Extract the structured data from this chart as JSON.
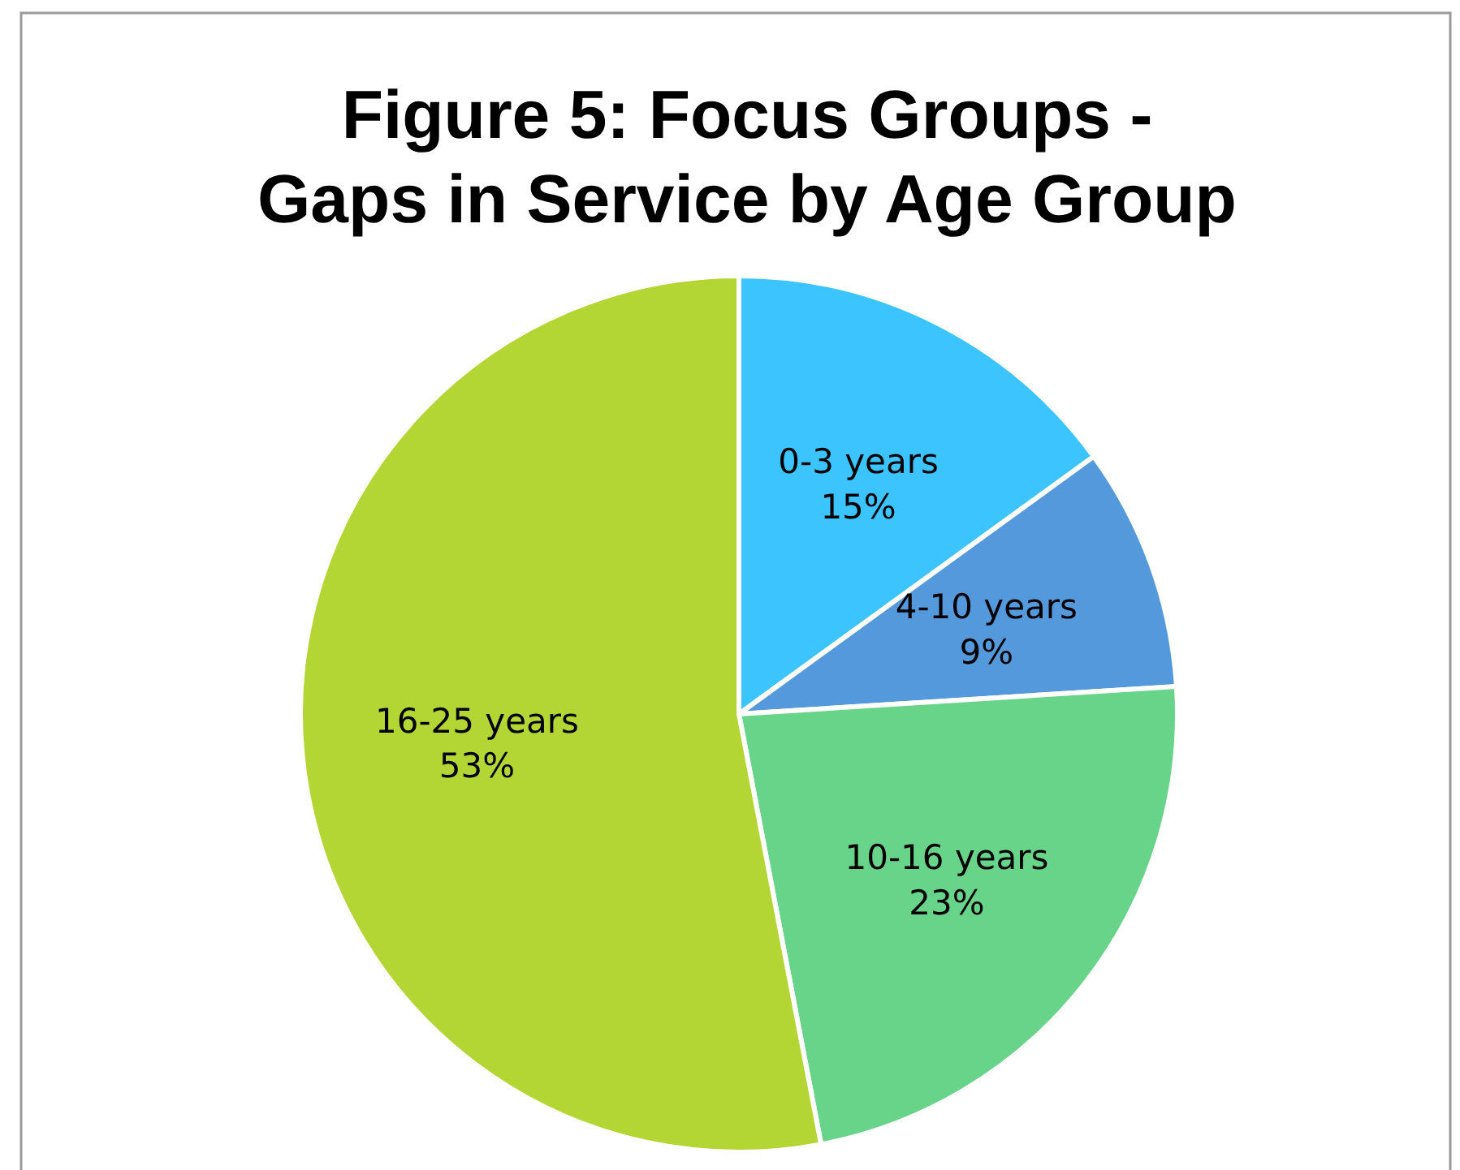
{
  "chart_data": {
    "type": "pie",
    "title": "Figure 5: Focus Groups - Gaps in Service by Age Group",
    "categories": [
      "0-3 years",
      "4-10 years",
      "10-16 years",
      "16-25 years"
    ],
    "values": [
      15,
      9,
      23,
      53
    ],
    "value_labels": [
      "15%",
      "9%",
      "23%",
      "53%"
    ],
    "colors": [
      "#3bc4ff",
      "#5599dd",
      "#68d48a",
      "#b3d634"
    ]
  }
}
